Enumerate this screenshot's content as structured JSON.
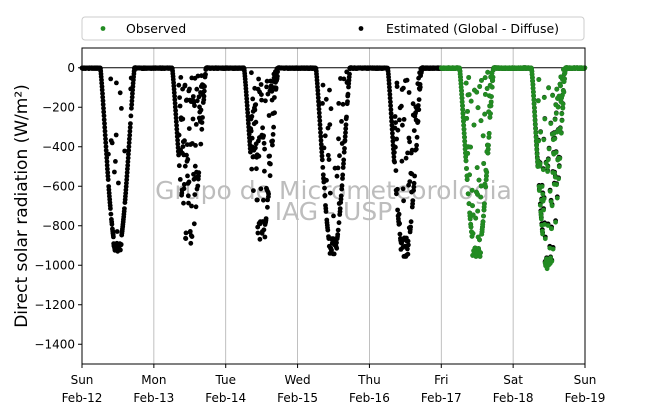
{
  "chart_data": {
    "type": "scatter",
    "title": "",
    "xlabel": "",
    "ylabel": "Direct solar radiation (W/m²)",
    "ylim": [
      -1500,
      100
    ],
    "yticks": [
      0,
      -200,
      -400,
      -600,
      -800,
      -1000,
      -1200,
      -1400
    ],
    "xlim": [
      "2017-02-12 00:00",
      "2017-02-19 00:00"
    ],
    "xticks": [
      {
        "weekday": "Sun",
        "date": "Feb-12"
      },
      {
        "weekday": "Mon",
        "date": "Feb-13"
      },
      {
        "weekday": "Tue",
        "date": "Feb-14"
      },
      {
        "weekday": "Wed",
        "date": "Feb-15"
      },
      {
        "weekday": "Thu",
        "date": "Feb-16"
      },
      {
        "weekday": "Fri",
        "date": "Feb-17"
      },
      {
        "weekday": "Sat",
        "date": "Feb-18"
      },
      {
        "weekday": "Sun",
        "date": "Feb-19"
      }
    ],
    "grid": "vertical at day ticks",
    "zero_line": true,
    "legend_placement": "top, above plot",
    "watermark": [
      "Grupo de Micrometeorologia",
      "IAG - USP"
    ],
    "series": [
      {
        "name": "Observed",
        "color": "#228b22",
        "marker": "circle",
        "days": [
          {
            "day": "2017-02-17",
            "peak": -960,
            "cloud": 0.55,
            "min_range": [
              -960,
              -880
            ],
            "gaps": [],
            "seed": 71
          },
          {
            "day": "2017-02-18",
            "peak": -1020,
            "cloud": 0.6,
            "min_range": [
              -1020,
              -920
            ],
            "gaps": [],
            "seed": 83
          }
        ]
      },
      {
        "name": "Estimated (Global - Diffuse)",
        "color": "#000000",
        "marker": "circle",
        "days": [
          {
            "day": "2017-02-12",
            "peak": -930,
            "cloud": 0.2,
            "min_range": [
              -930,
              -860
            ],
            "gaps": [
              [
                0.76,
                0.86
              ]
            ],
            "seed": 3
          },
          {
            "day": "2017-02-13",
            "peak": -900,
            "cloud": 0.85,
            "min_range": [
              -900,
              -760
            ],
            "gaps": [],
            "seed": 11
          },
          {
            "day": "2017-02-14",
            "peak": -870,
            "cloud": 0.8,
            "min_range": [
              -870,
              -700
            ],
            "gaps": [],
            "seed": 19
          },
          {
            "day": "2017-02-15",
            "peak": -950,
            "cloud": 0.35,
            "min_range": [
              -950,
              -800
            ],
            "gaps": [],
            "seed": 29
          },
          {
            "day": "2017-02-16",
            "peak": -960,
            "cloud": 0.6,
            "min_range": [
              -960,
              -780
            ],
            "gaps": [],
            "seed": 37
          },
          {
            "day": "2017-02-17",
            "peak": -960,
            "cloud": 0.55,
            "min_range": [
              -960,
              -880
            ],
            "gaps": [],
            "seed": 71
          },
          {
            "day": "2017-02-18",
            "peak": -1010,
            "cloud": 0.6,
            "min_range": [
              -1010,
              -920
            ],
            "gaps": [],
            "seed": 83
          }
        ]
      }
    ]
  }
}
